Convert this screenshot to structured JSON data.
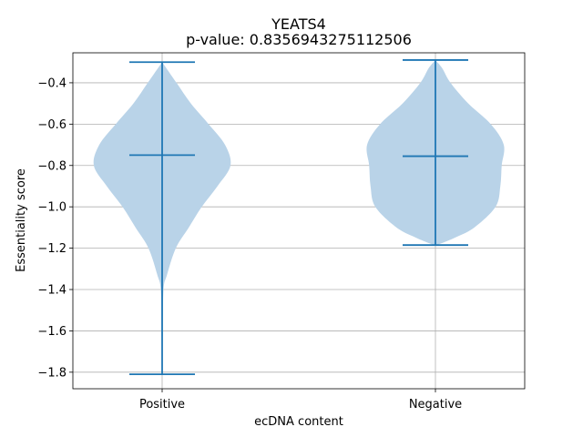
{
  "chart_data": {
    "type": "violin",
    "title": "YEATS4",
    "subtitle": "p-value: 0.8356943275112506",
    "xlabel": "ecDNA content",
    "ylabel": "Essentiality score",
    "categories": [
      "Positive",
      "Negative"
    ],
    "ylim": [
      -1.88,
      -0.255
    ],
    "yticks": [
      -1.8,
      -1.6,
      -1.4,
      -1.2,
      -1.0,
      -0.8,
      -0.6,
      -0.4
    ],
    "ytick_labels": [
      "−1.8",
      "−1.6",
      "−1.4",
      "−1.2",
      "−1.0",
      "−0.8",
      "−0.6",
      "−0.4"
    ],
    "grid": true,
    "violin_color": "#b9d3e8",
    "line_color": "#1f77b4",
    "series": [
      {
        "category": "Positive",
        "min": -1.81,
        "max": -0.3,
        "median": -0.75,
        "density": [
          {
            "y": -1.81,
            "w": 0.0
          },
          {
            "y": -1.6,
            "w": 0.01
          },
          {
            "y": -1.4,
            "w": 0.02
          },
          {
            "y": -1.33,
            "w": 0.07
          },
          {
            "y": -1.2,
            "w": 0.2
          },
          {
            "y": -1.1,
            "w": 0.39
          },
          {
            "y": -1.0,
            "w": 0.58
          },
          {
            "y": -0.9,
            "w": 0.81
          },
          {
            "y": -0.8,
            "w": 1.0
          },
          {
            "y": -0.7,
            "w": 0.92
          },
          {
            "y": -0.6,
            "w": 0.68
          },
          {
            "y": -0.5,
            "w": 0.42
          },
          {
            "y": -0.4,
            "w": 0.21
          },
          {
            "y": -0.3,
            "w": 0.0
          }
        ]
      },
      {
        "category": "Negative",
        "min": -1.185,
        "max": -0.29,
        "median": -0.755,
        "density": [
          {
            "y": -1.185,
            "w": 0.02
          },
          {
            "y": -1.15,
            "w": 0.28
          },
          {
            "y": -1.1,
            "w": 0.57
          },
          {
            "y": -1.0,
            "w": 0.88
          },
          {
            "y": -0.9,
            "w": 0.95
          },
          {
            "y": -0.8,
            "w": 0.97
          },
          {
            "y": -0.7,
            "w": 1.0
          },
          {
            "y": -0.6,
            "w": 0.81
          },
          {
            "y": -0.5,
            "w": 0.48
          },
          {
            "y": -0.4,
            "w": 0.22
          },
          {
            "y": -0.33,
            "w": 0.1
          },
          {
            "y": -0.29,
            "w": 0.0
          }
        ]
      }
    ]
  }
}
